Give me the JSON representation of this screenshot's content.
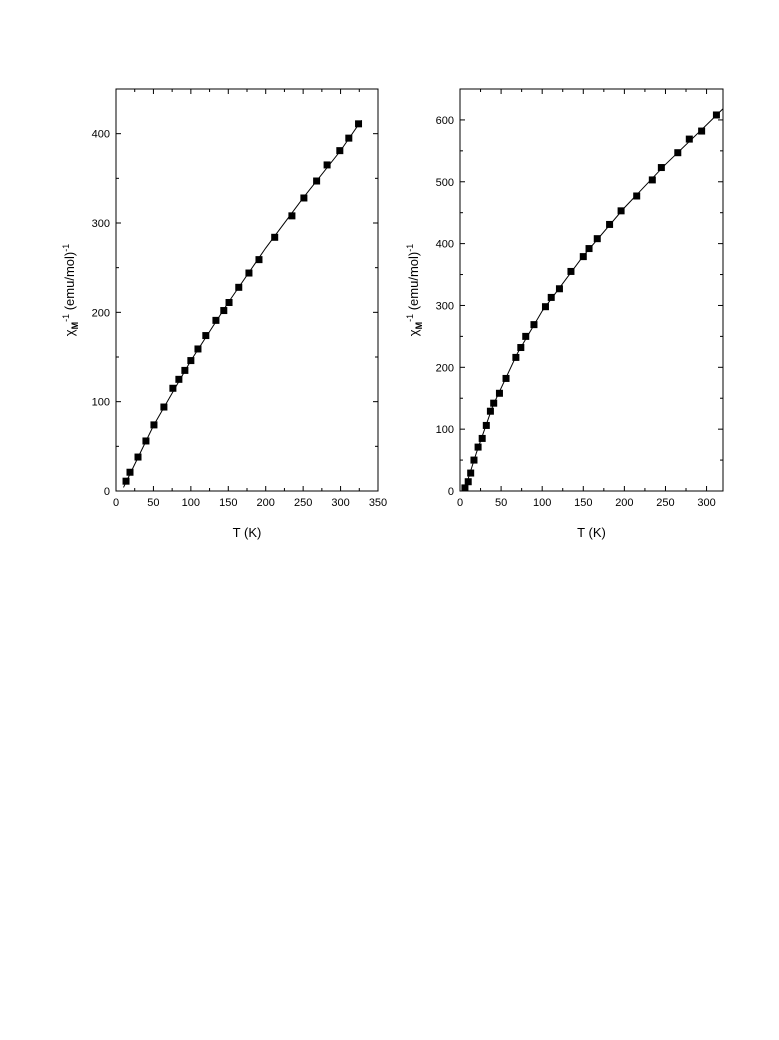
{
  "chart_data": [
    {
      "type": "scatter",
      "color": "#000000",
      "x_label": "T (K)",
      "y_label_parts": [
        "χ",
        "M",
        "-1",
        " (emu/mol)",
        "-1"
      ],
      "xlim": [
        0,
        350
      ],
      "xticks": [
        0,
        50,
        100,
        150,
        200,
        250,
        300,
        350
      ],
      "ylim": [
        0,
        450
      ],
      "yticks": [
        0,
        100,
        200,
        300,
        400
      ],
      "x": [
        13.4,
        18.7,
        29.4,
        40,
        50.7,
        64,
        76,
        84,
        92,
        100,
        109.5,
        120,
        133.5,
        144,
        151,
        164,
        177.6,
        191,
        212,
        235,
        251,
        268,
        282,
        299,
        311,
        324
      ],
      "values": [
        11,
        21,
        38,
        56,
        74,
        94,
        115,
        125,
        135,
        146,
        159,
        174,
        191,
        202,
        211,
        228,
        244,
        259,
        284,
        308,
        328,
        347,
        365,
        381,
        395,
        411
      ],
      "fit": {
        "x": [
          10,
          50,
          100,
          150,
          200,
          250,
          300,
          328
        ],
        "values": [
          4,
          73,
          146,
          211,
          272,
          328,
          381,
          415
        ]
      }
    },
    {
      "type": "scatter",
      "color": "#000000",
      "x_label": "T (K)",
      "y_label_parts": [
        "χ",
        "M",
        "-1",
        " (emu/mol)",
        "-1"
      ],
      "xlim": [
        0,
        320
      ],
      "xticks": [
        0,
        50,
        100,
        150,
        200,
        250,
        300
      ],
      "ylim": [
        0,
        650
      ],
      "yticks": [
        0,
        100,
        200,
        300,
        400,
        500,
        600
      ],
      "x": [
        6,
        10,
        13,
        17,
        22,
        27,
        32,
        37,
        41,
        48,
        56,
        68,
        74,
        80,
        90,
        104,
        111,
        121,
        135,
        150,
        157,
        167,
        182,
        196,
        215,
        234,
        245,
        265,
        279,
        294,
        312
      ],
      "values": [
        5,
        15,
        29,
        50,
        71,
        85,
        106,
        129,
        142,
        158,
        182,
        216,
        232,
        250,
        269,
        298,
        313,
        327,
        355,
        379,
        392,
        408,
        431,
        453,
        477,
        503,
        523,
        547,
        569,
        582,
        608
      ],
      "fit": {
        "x": [
          5,
          10,
          20,
          40,
          70,
          100,
          150,
          200,
          250,
          300,
          320
        ],
        "values": [
          0,
          20,
          62,
          138,
          223,
          291,
          380,
          458,
          528,
          592,
          618
        ]
      }
    }
  ]
}
